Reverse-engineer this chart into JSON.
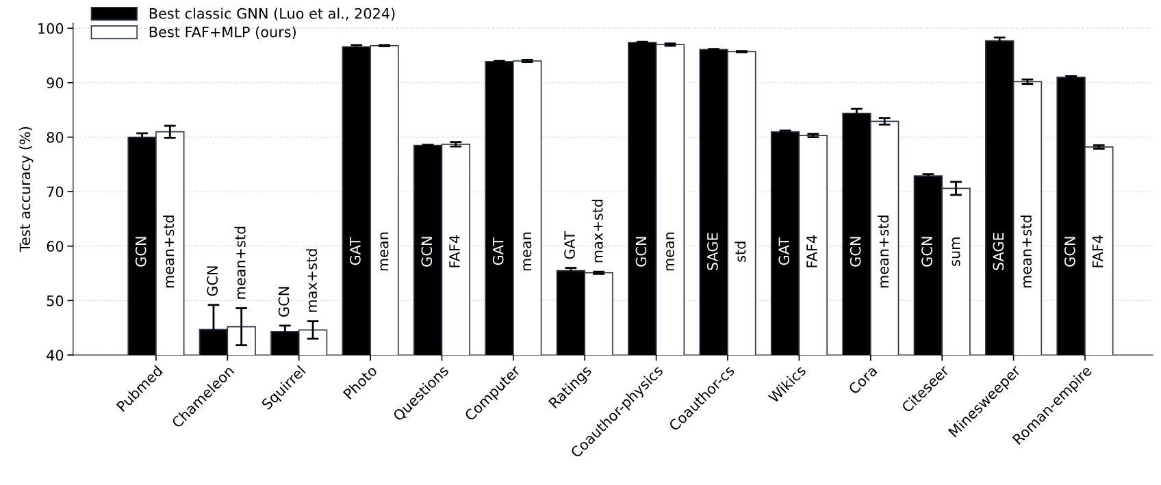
{
  "chart_data": {
    "type": "bar",
    "ylabel": "Test accuracy (%)",
    "categories": [
      "Pubmed",
      "Chameleon",
      "Squirrel",
      "Photo",
      "Questions",
      "Computer",
      "Ratings",
      "Coauthor-physics",
      "Coauthor-cs",
      "Wikics",
      "Cora",
      "Citeseer",
      "Minesweeper",
      "Roman-empire"
    ],
    "series": [
      {
        "name": "Best classic GNN (Luo et al., 2024)",
        "color": "#000000",
        "values": [
          80.0,
          44.7,
          44.3,
          96.6,
          78.5,
          93.9,
          55.5,
          97.4,
          96.1,
          81.0,
          84.4,
          72.9,
          97.7,
          91.0
        ],
        "errors": [
          0.7,
          4.5,
          1.1,
          0.3,
          0.1,
          0.1,
          0.5,
          0.1,
          0.1,
          0.2,
          0.8,
          0.3,
          0.6,
          0.2
        ]
      },
      {
        "name": "Best FAF+MLP (ours)",
        "color": "#ffffff",
        "values": [
          81.0,
          45.2,
          44.6,
          96.8,
          78.7,
          94.0,
          55.1,
          97.0,
          95.7,
          80.3,
          82.9,
          70.6,
          90.2,
          78.2
        ],
        "errors": [
          1.1,
          3.4,
          1.6,
          0.1,
          0.4,
          0.2,
          0.2,
          0.2,
          0.1,
          0.3,
          0.6,
          1.2,
          0.4,
          0.3
        ]
      }
    ],
    "annotations": [
      "GCN",
      "mean+std",
      "GCN",
      "mean+std",
      "GCN",
      "max+std",
      "GAT",
      "mean",
      "GCN",
      "FAF4",
      "GAT",
      "mean",
      "GAT",
      "max+std",
      "GCN",
      "mean",
      "SAGE",
      "std",
      "GAT",
      "FAF4",
      "GCN",
      "mean+std",
      "GCN",
      "sum",
      "SAGE",
      "mean+std",
      "GCN",
      "FAF4"
    ],
    "ylim": [
      40,
      101
    ],
    "yticks": [
      40,
      50,
      60,
      70,
      80,
      90,
      100
    ],
    "grid": "y",
    "legend": "top left"
  }
}
